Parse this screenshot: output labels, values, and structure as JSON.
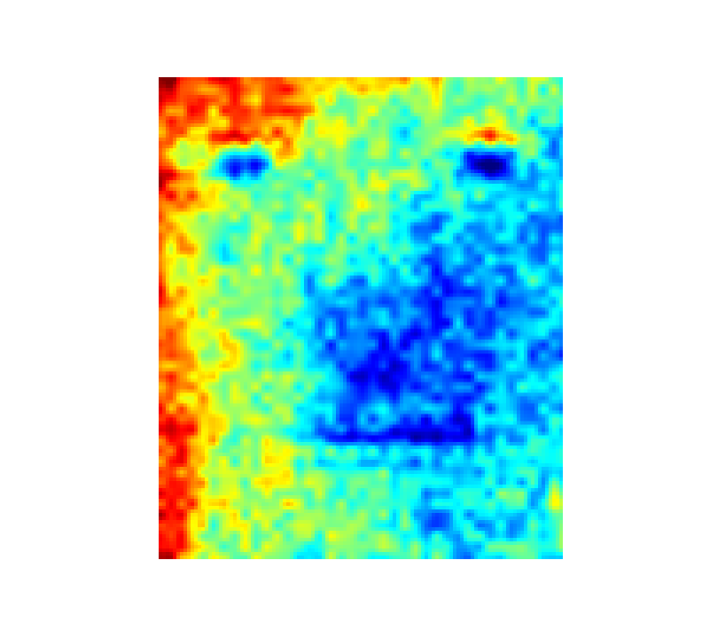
{
  "image": {
    "subject": "face-heatmap",
    "colormap": "jet",
    "colormap_stops": [
      "#00007f",
      "#0000ff",
      "#007fff",
      "#00ffff",
      "#7fff7f",
      "#ffff00",
      "#ff7f00",
      "#ff0000",
      "#7f0000"
    ],
    "background_color": "#ffffff",
    "grid_resolution": [
      114,
      136
    ]
  },
  "chart_data": {
    "type": "heatmap",
    "title": "",
    "xlabel": "",
    "ylabel": "",
    "colorbar": false,
    "axes_visible": false,
    "value_range": [
      0,
      1
    ]
  }
}
